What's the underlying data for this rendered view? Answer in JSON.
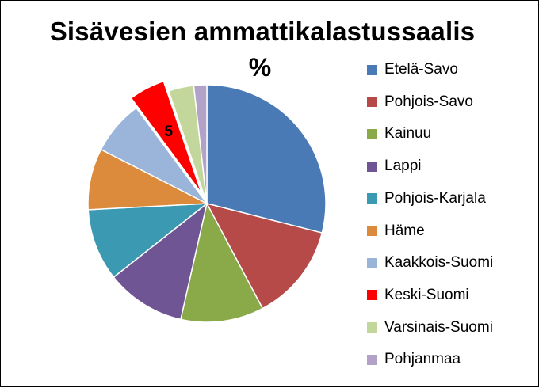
{
  "chart_data": {
    "type": "pie",
    "title": "Sisävesien ammattikalastussaalis",
    "subtitle": "%",
    "legend_position": "right",
    "series": [
      {
        "name": "Etelä-Savo",
        "value": 29.5,
        "color": "#4a7ab5"
      },
      {
        "name": "Pohjois-Savo",
        "value": 13.5,
        "color": "#b54a48"
      },
      {
        "name": "Kainuu",
        "value": 11.5,
        "color": "#8aa948"
      },
      {
        "name": "Lappi",
        "value": 11.0,
        "color": "#6f5593"
      },
      {
        "name": "Pohjois-Karjala",
        "value": 10.0,
        "color": "#3b9ab1"
      },
      {
        "name": "Häme",
        "value": 8.5,
        "color": "#dc8a3c"
      },
      {
        "name": "Kaakkois-Suomi",
        "value": 7.5,
        "color": "#9bb4d9"
      },
      {
        "name": "Keski-Suomi",
        "value": 5.0,
        "color": "#ff0000",
        "exploded": true,
        "data_label": "5"
      },
      {
        "name": "Varsinais-Suomi",
        "value": 3.5,
        "color": "#c3d69b"
      },
      {
        "name": "Pohjanmaa",
        "value": 1.8,
        "color": "#b3a2c7"
      }
    ]
  }
}
